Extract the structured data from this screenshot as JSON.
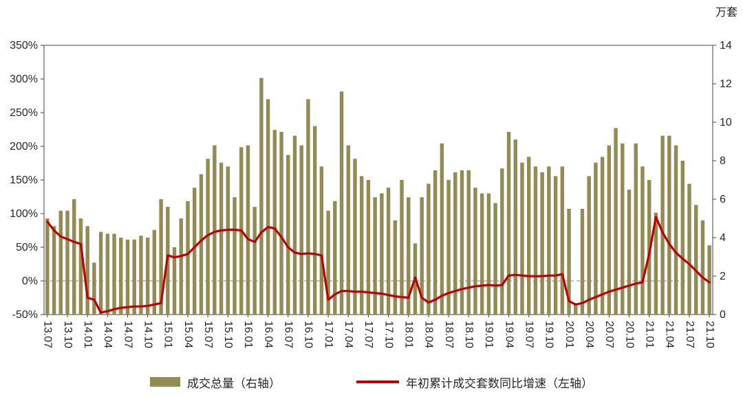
{
  "chart_data": {
    "type": "bar+line",
    "title": "",
    "unit_label_right": "万套",
    "x_tick_every": 3,
    "n_points": 100,
    "x_tick_labels": [
      "13.07",
      "13.10",
      "14.01",
      "14.04",
      "14.07",
      "14.10",
      "15.01",
      "15.04",
      "15.07",
      "15.10",
      "16.01",
      "16.04",
      "16.07",
      "16.10",
      "17.01",
      "17.04",
      "17.07",
      "17.10",
      "18.01",
      "18.04",
      "18.07",
      "18.10",
      "19.01",
      "19.04",
      "19.07",
      "19.10",
      "20.01",
      "20.04",
      "20.07",
      "20.10",
      "21.01",
      "21.04",
      "21.07",
      "21.10"
    ],
    "left_axis": {
      "min": -50,
      "max": 350,
      "step": 50,
      "format": "percent"
    },
    "right_axis": {
      "min": 0,
      "max": 14,
      "step": 2
    },
    "zero_line": true,
    "series": [
      {
        "name": "成交总量（右轴）",
        "type": "bar",
        "axis": "right",
        "color": "#948a54",
        "values": [
          5.0,
          4.6,
          5.4,
          5.4,
          6.0,
          5.0,
          4.6,
          2.7,
          4.3,
          4.2,
          4.2,
          4.0,
          3.9,
          3.9,
          4.1,
          4.0,
          4.4,
          6.0,
          5.6,
          3.5,
          5.0,
          5.9,
          6.6,
          7.3,
          8.1,
          8.8,
          7.9,
          7.7,
          6.1,
          8.7,
          8.8,
          5.6,
          12.3,
          11.2,
          9.6,
          9.5,
          8.3,
          9.3,
          8.8,
          11.2,
          9.8,
          7.7,
          5.4,
          5.9,
          11.6,
          8.8,
          8.1,
          7.2,
          7.0,
          6.1,
          6.3,
          6.6,
          4.9,
          7.0,
          6.1,
          3.7,
          6.1,
          6.8,
          7.5,
          8.9,
          7.0,
          7.4,
          7.5,
          7.5,
          6.6,
          6.3,
          6.3,
          5.8,
          7.6,
          9.5,
          9.1,
          7.9,
          8.2,
          7.7,
          7.4,
          7.7,
          7.2,
          7.7,
          5.5,
          0.5,
          5.5,
          7.2,
          7.9,
          8.2,
          8.8,
          9.7,
          8.9,
          6.5,
          8.9,
          7.7,
          7.0,
          5.3,
          9.3,
          9.3,
          8.8,
          8.0,
          6.8,
          5.7,
          4.9,
          3.6
        ]
      },
      {
        "name": "年初累计成交套数同比增速（左轴）",
        "type": "line",
        "axis": "left",
        "color": "#c00000",
        "values": [
          88,
          75,
          66,
          62,
          58,
          55,
          -25,
          -28,
          -47,
          -45,
          -42,
          -40,
          -39,
          -38,
          -38,
          -37,
          -35,
          -33,
          38,
          35,
          37,
          40,
          50,
          60,
          68,
          73,
          75,
          76,
          76,
          75,
          62,
          58,
          72,
          80,
          78,
          65,
          50,
          42,
          40,
          41,
          40,
          38,
          -28,
          -20,
          -15,
          -15,
          -16,
          -16,
          -17,
          -18,
          -19,
          -21,
          -23,
          -24,
          -25,
          5,
          -25,
          -32,
          -28,
          -22,
          -18,
          -15,
          -12,
          -10,
          -8,
          -7,
          -6,
          -7,
          -6,
          8,
          9,
          8,
          7,
          7,
          7,
          8,
          8,
          10,
          -30,
          -35,
          -33,
          -28,
          -24,
          -20,
          -16,
          -13,
          -10,
          -7,
          -4,
          -2,
          40,
          95,
          72,
          55,
          42,
          33,
          25,
          15,
          5,
          -2
        ]
      }
    ]
  },
  "legend": {
    "bar_label": "成交总量（右轴）",
    "line_label": "年初累计成交套数同比增速（左轴）"
  },
  "colors": {
    "bar": "#948a54",
    "line": "#c00000",
    "axis": "#404040",
    "zero_grid": "#808080",
    "text": "#262626",
    "background": "#ffffff"
  }
}
